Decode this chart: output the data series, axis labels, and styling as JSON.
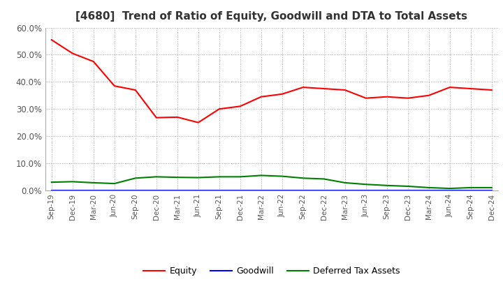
{
  "title": "[4680]  Trend of Ratio of Equity, Goodwill and DTA to Total Assets",
  "x_labels": [
    "Sep-19",
    "Dec-19",
    "Mar-20",
    "Jun-20",
    "Sep-20",
    "Dec-20",
    "Mar-21",
    "Jun-21",
    "Sep-21",
    "Dec-21",
    "Mar-22",
    "Jun-22",
    "Sep-22",
    "Dec-22",
    "Mar-23",
    "Jun-23",
    "Sep-23",
    "Dec-23",
    "Mar-24",
    "Jun-24",
    "Sep-24",
    "Dec-24"
  ],
  "equity": [
    0.555,
    0.505,
    0.475,
    0.385,
    0.37,
    0.268,
    0.27,
    0.25,
    0.3,
    0.31,
    0.345,
    0.355,
    0.38,
    0.375,
    0.37,
    0.34,
    0.345,
    0.34,
    0.35,
    0.38,
    0.375,
    0.37
  ],
  "goodwill": [
    0.0,
    0.0,
    0.0,
    0.0,
    0.0,
    0.0,
    0.0,
    0.0,
    0.0,
    0.0,
    0.0,
    0.0,
    0.0,
    0.0,
    0.0,
    0.0,
    0.0,
    0.0,
    0.0,
    0.0,
    0.0,
    0.0
  ],
  "dta": [
    0.03,
    0.032,
    0.028,
    0.025,
    0.045,
    0.05,
    0.048,
    0.047,
    0.05,
    0.05,
    0.055,
    0.052,
    0.045,
    0.042,
    0.028,
    0.022,
    0.018,
    0.015,
    0.01,
    0.007,
    0.01,
    0.01
  ],
  "equity_color": "#FF0000",
  "goodwill_color": "#0000FF",
  "dta_color": "#008000",
  "ylim": [
    0.0,
    0.6
  ],
  "yticks": [
    0.0,
    0.1,
    0.2,
    0.3,
    0.4,
    0.5,
    0.6
  ],
  "background_color": "#FFFFFF",
  "grid_color": "#AAAAAA",
  "tick_label_color": "#555555",
  "title_fontsize": 11,
  "title_color": "#333333"
}
